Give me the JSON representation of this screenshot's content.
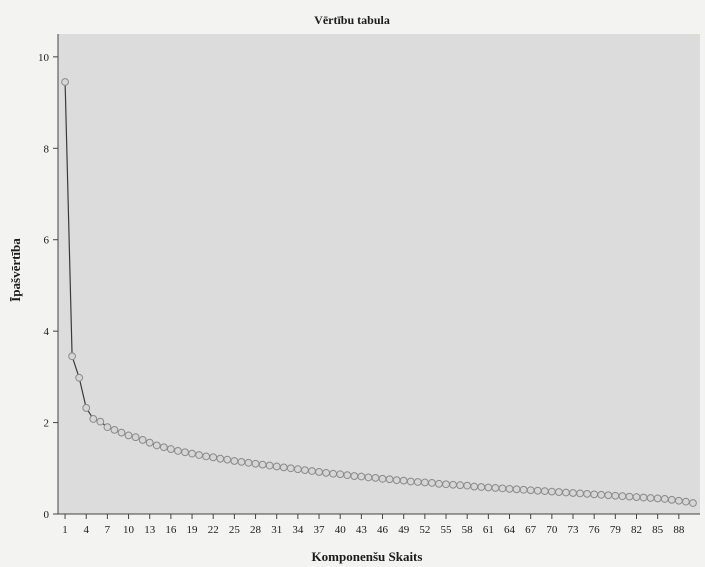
{
  "chart_data": {
    "type": "line",
    "title": "Vērtību tabula",
    "xlabel": "Komponenšu Skaits",
    "ylabel": "Īpašvērtība",
    "xlim": [
      0,
      91
    ],
    "ylim": [
      0,
      10.5
    ],
    "xticks": [
      1,
      4,
      7,
      10,
      13,
      16,
      19,
      22,
      25,
      28,
      31,
      34,
      37,
      40,
      43,
      46,
      49,
      52,
      55,
      58,
      61,
      64,
      67,
      70,
      73,
      76,
      79,
      82,
      85,
      88
    ],
    "yticks": [
      0,
      2,
      4,
      6,
      8,
      10
    ],
    "grid": false,
    "series": [
      {
        "x": [
          1,
          2,
          3,
          4,
          5,
          6,
          7,
          8,
          9,
          10,
          11,
          12,
          13,
          14,
          15,
          16,
          17,
          18,
          19,
          20,
          21,
          22,
          23,
          24,
          25,
          26,
          27,
          28,
          29,
          30,
          31,
          32,
          33,
          34,
          35,
          36,
          37,
          38,
          39,
          40,
          41,
          42,
          43,
          44,
          45,
          46,
          47,
          48,
          49,
          50,
          51,
          52,
          53,
          54,
          55,
          56,
          57,
          58,
          59,
          60,
          61,
          62,
          63,
          64,
          65,
          66,
          67,
          68,
          69,
          70,
          71,
          72,
          73,
          74,
          75,
          76,
          77,
          78,
          79,
          80,
          81,
          82,
          83,
          84,
          85,
          86,
          87,
          88,
          89,
          90
        ],
        "values": [
          9.45,
          3.45,
          2.98,
          2.32,
          2.08,
          2.02,
          1.9,
          1.84,
          1.78,
          1.72,
          1.68,
          1.62,
          1.56,
          1.5,
          1.46,
          1.42,
          1.38,
          1.35,
          1.32,
          1.29,
          1.26,
          1.24,
          1.21,
          1.19,
          1.16,
          1.14,
          1.12,
          1.1,
          1.08,
          1.06,
          1.04,
          1.02,
          1.0,
          0.98,
          0.96,
          0.94,
          0.92,
          0.9,
          0.88,
          0.87,
          0.85,
          0.83,
          0.82,
          0.8,
          0.79,
          0.77,
          0.76,
          0.74,
          0.73,
          0.71,
          0.7,
          0.69,
          0.68,
          0.66,
          0.65,
          0.64,
          0.63,
          0.62,
          0.6,
          0.59,
          0.58,
          0.57,
          0.56,
          0.55,
          0.54,
          0.53,
          0.52,
          0.51,
          0.5,
          0.49,
          0.48,
          0.47,
          0.46,
          0.45,
          0.44,
          0.43,
          0.42,
          0.41,
          0.4,
          0.39,
          0.38,
          0.37,
          0.36,
          0.35,
          0.34,
          0.33,
          0.31,
          0.29,
          0.27,
          0.24
        ]
      }
    ],
    "colors": {
      "background": "#f3f3f1",
      "plot_background": "#dcdcdc",
      "line": "#3a3a3a",
      "marker_fill": "#d6d6d6",
      "marker_stroke": "#8a8a8a",
      "axis": "#444444"
    }
  }
}
